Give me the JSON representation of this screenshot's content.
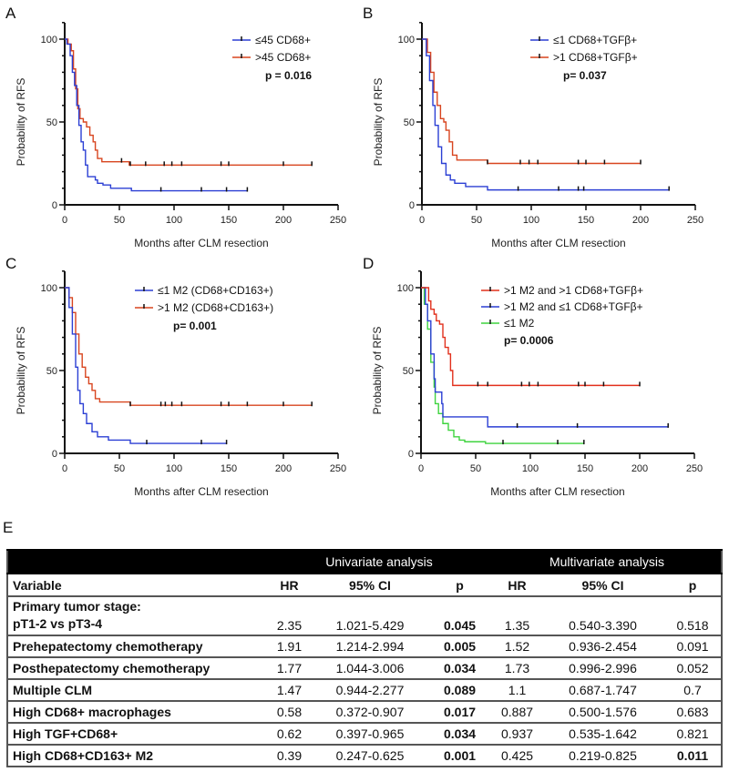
{
  "colors": {
    "blue": "#2b3fd4",
    "red": "#d8451f",
    "red_d": "#e2301c",
    "green": "#3fd43f"
  },
  "chart_data": [
    {
      "panel": "A",
      "type": "line",
      "subtype": "kaplan-meier",
      "xlabel": "Months after CLM resection",
      "ylabel": "Probability of RFS",
      "xlim": [
        0,
        250
      ],
      "ylim": [
        0,
        100
      ],
      "xticks": [
        "0",
        "50",
        "100",
        "150",
        "200",
        "250"
      ],
      "yticks": [
        "0",
        "50",
        "100"
      ],
      "p_value": "p = 0.016",
      "series": [
        {
          "name": "≤45 CD68+",
          "color": "blue",
          "points": [
            [
              0,
              100
            ],
            [
              2,
              97
            ],
            [
              5,
              90
            ],
            [
              7,
              80
            ],
            [
              9,
              72
            ],
            [
              11,
              60
            ],
            [
              13,
              48
            ],
            [
              15,
              38
            ],
            [
              17,
              33
            ],
            [
              19,
              24
            ],
            [
              21,
              17
            ],
            [
              25,
              17
            ],
            [
              28,
              15
            ],
            [
              30,
              13
            ],
            [
              35,
              12
            ],
            [
              42,
              10
            ],
            [
              61,
              10
            ],
            [
              61,
              8.5
            ],
            [
              167,
              8.5
            ]
          ],
          "censored": [
            88,
            125,
            148,
            167
          ]
        },
        {
          "name": ">45 CD68+",
          "color": "red",
          "points": [
            [
              0,
              100
            ],
            [
              3,
              97
            ],
            [
              6,
              93
            ],
            [
              8,
              82
            ],
            [
              10,
              70
            ],
            [
              12,
              58
            ],
            [
              14,
              52
            ],
            [
              17,
              50
            ],
            [
              20,
              47
            ],
            [
              23,
              42
            ],
            [
              26,
              38
            ],
            [
              28,
              33
            ],
            [
              30,
              28
            ],
            [
              34,
              26
            ],
            [
              58,
              26
            ],
            [
              59,
              24
            ],
            [
              226,
              24
            ]
          ],
          "censored": [
            52,
            60,
            74,
            91,
            98,
            107,
            143,
            150,
            200,
            226
          ]
        }
      ]
    },
    {
      "panel": "B",
      "type": "line",
      "subtype": "kaplan-meier",
      "xlabel": "Months after CLM resection",
      "ylabel": "Probability of RFS",
      "xlim": [
        0,
        250
      ],
      "ylim": [
        0,
        100
      ],
      "xticks": [
        "0",
        "50",
        "100",
        "150",
        "200",
        "250"
      ],
      "yticks": [
        "0",
        "50",
        "100"
      ],
      "p_value": "p= 0.037",
      "series": [
        {
          "name": "≤1 CD68+TGFβ+",
          "color": "blue",
          "points": [
            [
              0,
              100
            ],
            [
              4,
              90
            ],
            [
              7,
              75
            ],
            [
              10,
              60
            ],
            [
              12,
              48
            ],
            [
              15,
              35
            ],
            [
              18,
              25
            ],
            [
              22,
              18
            ],
            [
              26,
              15
            ],
            [
              30,
              13
            ],
            [
              40,
              11
            ],
            [
              58,
              11
            ],
            [
              60,
              9
            ],
            [
              226,
              9
            ]
          ],
          "censored": [
            88,
            125,
            143,
            148,
            226
          ]
        },
        {
          "name": ">1 CD68+TGFβ+",
          "color": "red",
          "points": [
            [
              0,
              100
            ],
            [
              5,
              92
            ],
            [
              8,
              80
            ],
            [
              11,
              68
            ],
            [
              14,
              60
            ],
            [
              17,
              52
            ],
            [
              20,
              50
            ],
            [
              22,
              45
            ],
            [
              25,
              38
            ],
            [
              28,
              30
            ],
            [
              32,
              27
            ],
            [
              58,
              27
            ],
            [
              60,
              25
            ],
            [
              200,
              25
            ]
          ],
          "censored": [
            60,
            90,
            98,
            106,
            143,
            150,
            167,
            200
          ]
        }
      ]
    },
    {
      "panel": "C",
      "type": "line",
      "subtype": "kaplan-meier",
      "xlabel": "Months after CLM resection",
      "ylabel": "Probability of RFS",
      "xlim": [
        0,
        250
      ],
      "ylim": [
        0,
        100
      ],
      "xticks": [
        "0",
        "50",
        "100",
        "150",
        "200",
        "250"
      ],
      "yticks": [
        "0",
        "50",
        "100"
      ],
      "p_value": "p= 0.001",
      "series": [
        {
          "name": "≤1 M2 (CD68+CD163+)",
          "color": "blue",
          "points": [
            [
              0,
              100
            ],
            [
              4,
              88
            ],
            [
              7,
              72
            ],
            [
              10,
              52
            ],
            [
              12,
              38
            ],
            [
              14,
              30
            ],
            [
              17,
              24
            ],
            [
              20,
              18
            ],
            [
              25,
              13
            ],
            [
              30,
              10
            ],
            [
              40,
              8
            ],
            [
              58,
              8
            ],
            [
              60,
              6
            ],
            [
              148,
              6
            ]
          ],
          "censored": [
            75,
            125,
            148
          ]
        },
        {
          "name": ">1 M2 (CD68+CD163+)",
          "color": "red",
          "points": [
            [
              0,
              100
            ],
            [
              4,
              94
            ],
            [
              7,
              85
            ],
            [
              10,
              72
            ],
            [
              13,
              60
            ],
            [
              16,
              52
            ],
            [
              19,
              46
            ],
            [
              22,
              42
            ],
            [
              25,
              38
            ],
            [
              28,
              33
            ],
            [
              32,
              31
            ],
            [
              58,
              31
            ],
            [
              60,
              29
            ],
            [
              226,
              29
            ]
          ],
          "censored": [
            60,
            88,
            92,
            98,
            107,
            143,
            150,
            167,
            200,
            226
          ]
        }
      ]
    },
    {
      "panel": "D",
      "type": "line",
      "subtype": "kaplan-meier",
      "xlabel": "Months after CLM resection",
      "ylabel": "Probability of RFS",
      "xlim": [
        0,
        250
      ],
      "ylim": [
        0,
        100
      ],
      "xticks": [
        "0",
        "50",
        "100",
        "150",
        "200",
        "250"
      ],
      "yticks": [
        "0",
        "50",
        "100"
      ],
      "p_value": "p= 0.0006",
      "series": [
        {
          "name": ">1 M2 and >1 CD68+TGFβ+",
          "color": "red_d",
          "points": [
            [
              0,
              100
            ],
            [
              6,
              100
            ],
            [
              7,
              92
            ],
            [
              9,
              87
            ],
            [
              12,
              84
            ],
            [
              14,
              80
            ],
            [
              17,
              78
            ],
            [
              20,
              70
            ],
            [
              22,
              64
            ],
            [
              25,
              60
            ],
            [
              27,
              50
            ],
            [
              29,
              41
            ],
            [
              200,
              41
            ]
          ],
          "censored": [
            52,
            61,
            92,
            99,
            107,
            144,
            150,
            167,
            200
          ]
        },
        {
          "name": ">1 M2 and ≤1 CD68+TGFβ+",
          "color": "blue",
          "points": [
            [
              0,
              100
            ],
            [
              4,
              90
            ],
            [
              6,
              80
            ],
            [
              9,
              60
            ],
            [
              12,
              45
            ],
            [
              13,
              37
            ],
            [
              18,
              37
            ],
            [
              19,
              30
            ],
            [
              20,
              22
            ],
            [
              60,
              22
            ],
            [
              61,
              16
            ],
            [
              226,
              16
            ]
          ],
          "censored": [
            88,
            143,
            226
          ]
        },
        {
          "name": "≤1 M2",
          "color": "green",
          "points": [
            [
              0,
              100
            ],
            [
              3,
              90
            ],
            [
              6,
              75
            ],
            [
              9,
              55
            ],
            [
              12,
              40
            ],
            [
              13,
              30
            ],
            [
              16,
              24
            ],
            [
              20,
              18
            ],
            [
              25,
              14
            ],
            [
              30,
              10
            ],
            [
              35,
              8
            ],
            [
              40,
              7
            ],
            [
              58,
              7
            ],
            [
              59,
              6
            ],
            [
              149,
              6
            ]
          ],
          "censored": [
            75,
            125,
            149
          ]
        }
      ]
    }
  ],
  "table": {
    "panel": "E",
    "group_headers": [
      "Univariate analysis",
      "Multivariate analysis"
    ],
    "columns": [
      "Variable",
      "HR",
      "95% CI",
      "p",
      "HR",
      "95% CI",
      "p"
    ],
    "rows": [
      {
        "variable": [
          "Primary tumor stage:",
          "pT1-2 vs pT3-4"
        ],
        "uni_hr": "2.35",
        "uni_ci": "1.021-5.429",
        "uni_p": "0.045",
        "uni_sig": true,
        "multi_hr": "1.35",
        "multi_ci": "0.540-3.390",
        "multi_p": "0.518",
        "multi_sig": false
      },
      {
        "variable": [
          "Prehepatectomy chemotherapy"
        ],
        "uni_hr": "1.91",
        "uni_ci": "1.214-2.994",
        "uni_p": "0.005",
        "uni_sig": true,
        "multi_hr": "1.52",
        "multi_ci": "0.936-2.454",
        "multi_p": "0.091",
        "multi_sig": false
      },
      {
        "variable": [
          "Posthepatectomy chemotherapy"
        ],
        "uni_hr": "1.77",
        "uni_ci": "1.044-3.006",
        "uni_p": "0.034",
        "uni_sig": true,
        "multi_hr": "1.73",
        "multi_ci": "0.996-2.996",
        "multi_p": "0.052",
        "multi_sig": false
      },
      {
        "variable": [
          "Multiple CLM"
        ],
        "uni_hr": "1.47",
        "uni_ci": "0.944-2.277",
        "uni_p": "0.089",
        "uni_sig": true,
        "multi_hr": "1.1",
        "multi_ci": "0.687-1.747",
        "multi_p": "0.7",
        "multi_sig": false
      },
      {
        "variable": [
          "High CD68+ macrophages"
        ],
        "uni_hr": "0.58",
        "uni_ci": "0.372-0.907",
        "uni_p": "0.017",
        "uni_sig": true,
        "multi_hr": "0.887",
        "multi_ci": "0.500-1.576",
        "multi_p": "0.683",
        "multi_sig": false
      },
      {
        "variable": [
          "High TGF+CD68+"
        ],
        "uni_hr": "0.62",
        "uni_ci": "0.397-0.965",
        "uni_p": "0.034",
        "uni_sig": true,
        "multi_hr": "0.937",
        "multi_ci": "0.535-1.642",
        "multi_p": "0.821",
        "multi_sig": false
      },
      {
        "variable": [
          "High CD68+CD163+ M2"
        ],
        "uni_hr": "0.39",
        "uni_ci": "0.247-0.625",
        "uni_p": "0.001",
        "uni_sig": true,
        "multi_hr": "0.425",
        "multi_ci": "0.219-0.825",
        "multi_p": "0.011",
        "multi_sig": true
      }
    ]
  }
}
